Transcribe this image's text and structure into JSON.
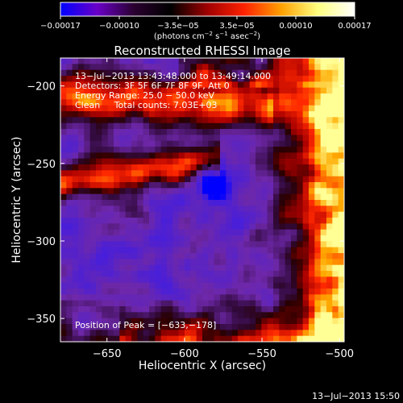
{
  "chart_data": {
    "type": "heatmap",
    "title": "Reconstructed RHESSI Image",
    "xlabel": "Heliocentric X (arcsec)",
    "ylabel": "Heliocentric Y (arcsec)",
    "xlim": [
      -680,
      -497
    ],
    "ylim": [
      -365,
      -182
    ],
    "x_ticks": [
      -650,
      -600,
      -550,
      -500
    ],
    "x_tick_labels": [
      "−650",
      "−600",
      "−550",
      "−500"
    ],
    "y_ticks": [
      -200,
      -250,
      -300,
      -350
    ],
    "y_tick_labels": [
      "−200",
      "−250",
      "−300",
      "−350"
    ],
    "colorbar": {
      "tick_labels": [
        "−0.00017",
        "−0.00010",
        "−3.5e−05",
        "3.5e−05",
        "0.00010",
        "0.00017"
      ],
      "range": [
        -0.00017,
        0.00017
      ],
      "units_pre": "(photons cm",
      "units_exp1": "−2",
      "units_mid": " s",
      "units_exp2": "−1",
      "units_mid2": " asec",
      "units_exp3": "−2",
      "units_post": ")",
      "colors": [
        "#0000ff",
        "#6a00c8",
        "#2a0030",
        "#000000",
        "#a00000",
        "#ff2200",
        "#ffa000",
        "#ffff80",
        "#ffffff"
      ]
    },
    "info_lines": [
      "13−Jul−2013 13:43:48.000 to 13:49:14.000",
      "Detectors: 3F 5F 6F 7F 8F 9F, Att 0",
      "Energy Range: 25.0 − 50.0 keV",
      "Clean     Total counts: 7.03E+03"
    ],
    "peak_label": "Position of Peak = [−633,−178]",
    "marker_position": [
      -584,
      -251
    ],
    "footer_date": "13−Jul−2013 15:50",
    "grid": false
  }
}
